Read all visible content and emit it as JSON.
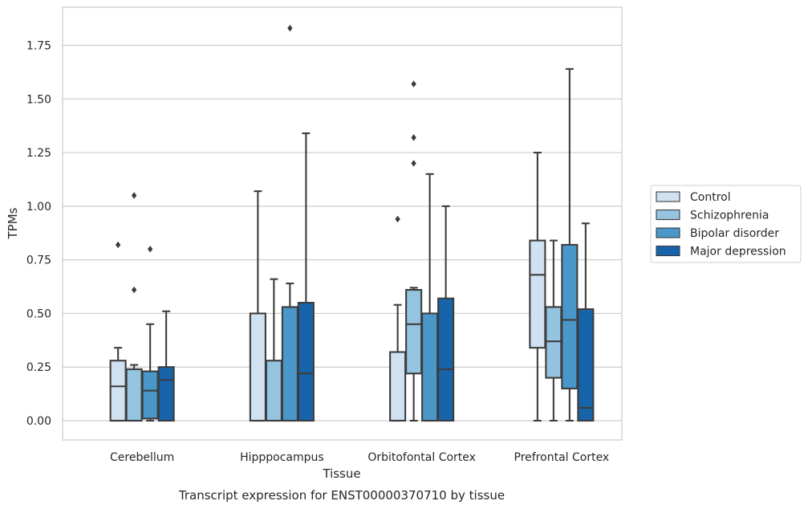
{
  "chart_data": {
    "type": "boxplot",
    "title": "Transcript expression for ENST00000370710 by tissue",
    "xlabel": "Tissue",
    "ylabel": "TPMs",
    "ylim": [
      -0.09,
      1.94
    ],
    "yticks": [
      "0.00",
      "0.25",
      "0.50",
      "0.75",
      "1.00",
      "1.25",
      "1.50",
      "1.75"
    ],
    "grid": "horizontal",
    "legend_position": "right",
    "categories": [
      "Cerebellum",
      "Hipppocampus",
      "Orbitofontal Cortex",
      "Prefrontal Cortex"
    ],
    "series": [
      {
        "name": "Control",
        "color": "#d0e1f2",
        "boxes": [
          {
            "whisker_low": 0.0,
            "q1": 0.0,
            "median": 0.16,
            "q3": 0.28,
            "whisker_high": 0.34,
            "outliers": [
              0.82
            ]
          },
          {
            "whisker_low": 0.0,
            "q1": 0.0,
            "median": 0.0,
            "q3": 0.5,
            "whisker_high": 1.07,
            "outliers": []
          },
          {
            "whisker_low": 0.0,
            "q1": 0.0,
            "median": 0.0,
            "q3": 0.32,
            "whisker_high": 0.54,
            "outliers": [
              0.94
            ]
          },
          {
            "whisker_low": 0.0,
            "q1": 0.34,
            "median": 0.68,
            "q3": 0.84,
            "whisker_high": 1.25,
            "outliers": []
          }
        ]
      },
      {
        "name": "Schizophrenia",
        "color": "#94c4df",
        "boxes": [
          {
            "whisker_low": 0.0,
            "q1": 0.0,
            "median": 0.0,
            "q3": 0.24,
            "whisker_high": 0.26,
            "outliers": [
              0.61,
              1.05
            ]
          },
          {
            "whisker_low": 0.0,
            "q1": 0.0,
            "median": 0.0,
            "q3": 0.28,
            "whisker_high": 0.66,
            "outliers": []
          },
          {
            "whisker_low": 0.0,
            "q1": 0.22,
            "median": 0.45,
            "q3": 0.61,
            "whisker_high": 0.62,
            "outliers": [
              1.2,
              1.32,
              1.57
            ]
          },
          {
            "whisker_low": 0.0,
            "q1": 0.2,
            "median": 0.37,
            "q3": 0.53,
            "whisker_high": 0.84,
            "outliers": []
          }
        ]
      },
      {
        "name": "Bipolar disorder",
        "color": "#4a98c9",
        "boxes": [
          {
            "whisker_low": 0.0,
            "q1": 0.01,
            "median": 0.14,
            "q3": 0.23,
            "whisker_high": 0.45,
            "outliers": [
              0.8
            ]
          },
          {
            "whisker_low": 0.0,
            "q1": 0.0,
            "median": 0.0,
            "q3": 0.53,
            "whisker_high": 0.64,
            "outliers": [
              1.83
            ]
          },
          {
            "whisker_low": 0.0,
            "q1": 0.0,
            "median": 0.0,
            "q3": 0.5,
            "whisker_high": 1.15,
            "outliers": []
          },
          {
            "whisker_low": 0.0,
            "q1": 0.15,
            "median": 0.47,
            "q3": 0.82,
            "whisker_high": 1.64,
            "outliers": []
          }
        ]
      },
      {
        "name": "Major depression",
        "color": "#1764ab",
        "boxes": [
          {
            "whisker_low": 0.0,
            "q1": 0.0,
            "median": 0.19,
            "q3": 0.25,
            "whisker_high": 0.51,
            "outliers": []
          },
          {
            "whisker_low": 0.0,
            "q1": 0.0,
            "median": 0.22,
            "q3": 0.55,
            "whisker_high": 1.34,
            "outliers": []
          },
          {
            "whisker_low": 0.0,
            "q1": 0.0,
            "median": 0.24,
            "q3": 0.57,
            "whisker_high": 1.0,
            "outliers": []
          },
          {
            "whisker_low": 0.0,
            "q1": 0.0,
            "median": 0.06,
            "q3": 0.52,
            "whisker_high": 0.92,
            "outliers": []
          }
        ]
      }
    ]
  }
}
